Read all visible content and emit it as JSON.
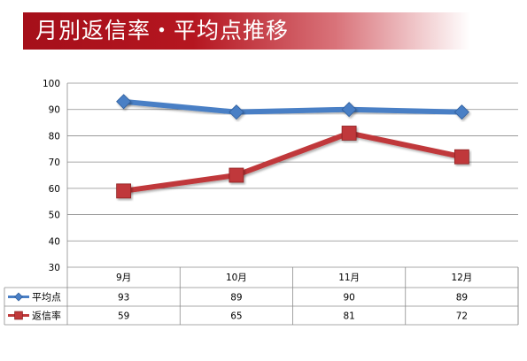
{
  "slide": {
    "title": "月別返信率・平均点推移"
  },
  "chart_data": {
    "type": "line",
    "categories": [
      "9月",
      "10月",
      "11月",
      "12月"
    ],
    "yticks": [
      30,
      40,
      50,
      60,
      70,
      80,
      90,
      100
    ],
    "ylim": [
      30,
      100
    ],
    "grid": true,
    "legend": "data-table",
    "series": [
      {
        "name": "平均点",
        "values": [
          93,
          89,
          90,
          89
        ],
        "color": "#4a7fc5",
        "marker": "diamond"
      },
      {
        "name": "返信率",
        "values": [
          59,
          65,
          81,
          72
        ],
        "color": "#c0393a",
        "marker": "square"
      }
    ]
  }
}
